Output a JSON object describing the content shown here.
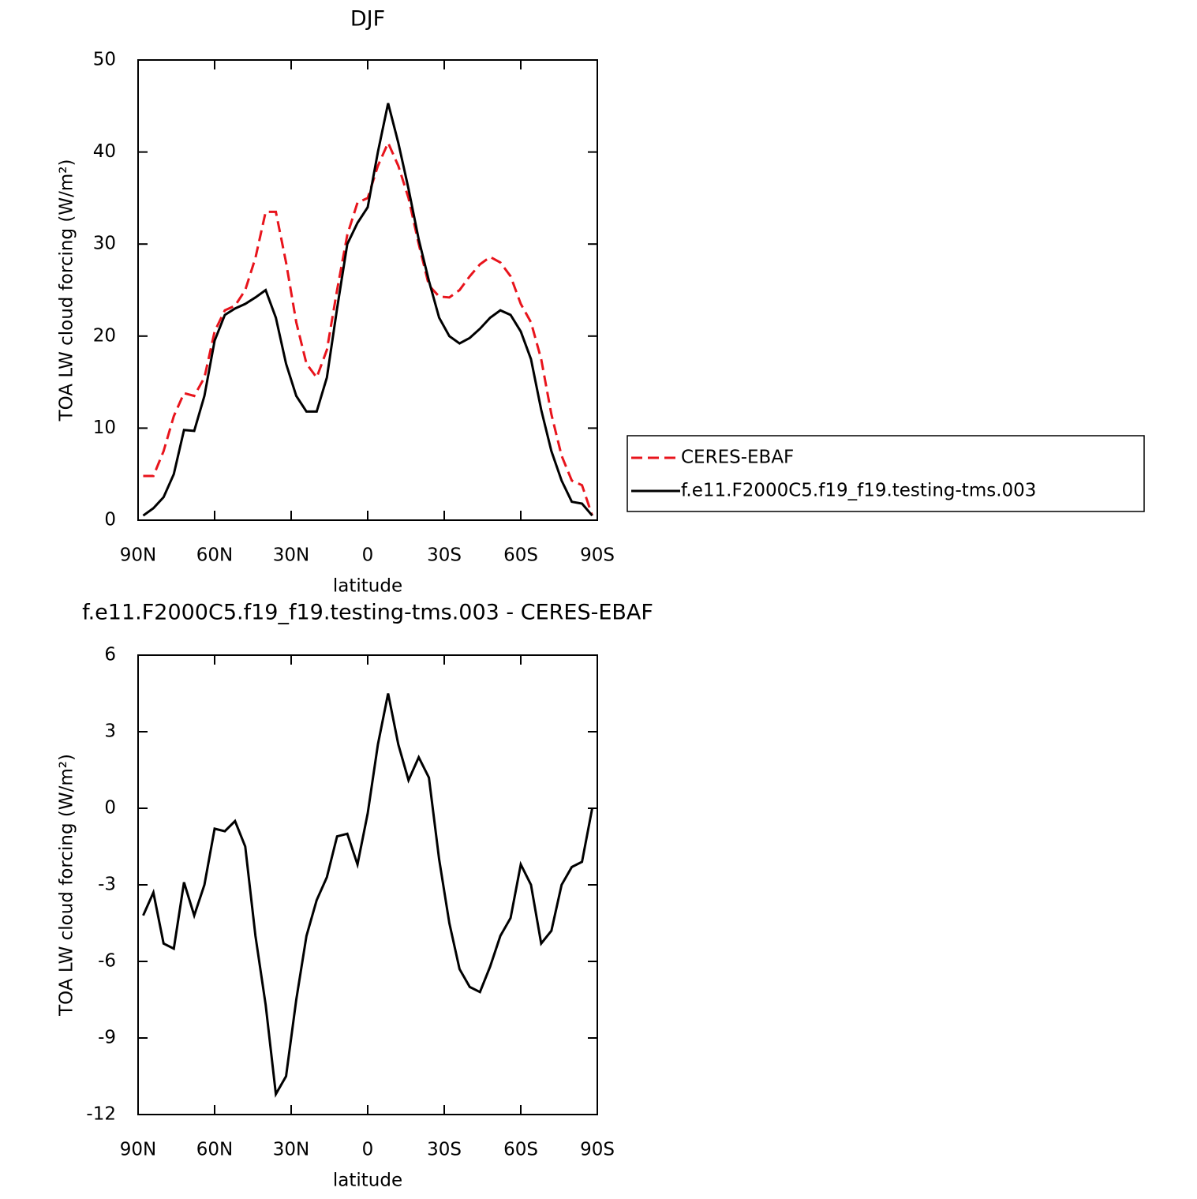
{
  "chart_data": [
    {
      "type": "line",
      "title": "DJF",
      "xlabel": "latitude",
      "ylabel": "TOA LW cloud forcing (W/m²)",
      "x": [
        88,
        84,
        80,
        76,
        72,
        68,
        64,
        60,
        56,
        52,
        48,
        44,
        40,
        36,
        32,
        28,
        24,
        20,
        16,
        12,
        8,
        4,
        0,
        -4,
        -8,
        -12,
        -16,
        -20,
        -24,
        -28,
        -32,
        -36,
        -40,
        -44,
        -48,
        -52,
        -56,
        -60,
        -64,
        -68,
        -72,
        -76,
        -80,
        -84,
        -88
      ],
      "xlim": [
        90,
        -90
      ],
      "xticks": [
        {
          "value": 90,
          "label": "90N"
        },
        {
          "value": 60,
          "label": "60N"
        },
        {
          "value": 30,
          "label": "30N"
        },
        0,
        {
          "value": -30,
          "label": "30S"
        },
        {
          "value": -60,
          "label": "60S"
        },
        {
          "value": -90,
          "label": "90S"
        }
      ],
      "ylim": [
        0,
        50
      ],
      "yticks": [
        0,
        10,
        20,
        30,
        40,
        50
      ],
      "legend": "right",
      "series": [
        {
          "name": "CERES-EBAF",
          "color": "#e8141c",
          "style": "dashed",
          "values": [
            4.8,
            4.8,
            7.5,
            11.3,
            13.8,
            13.5,
            15.5,
            20.5,
            22.8,
            23.3,
            25,
            28.5,
            33.5,
            33.5,
            28,
            21.5,
            17,
            15.5,
            18.5,
            25,
            31,
            34.5,
            35,
            38.5,
            41,
            38.5,
            35,
            30,
            25.5,
            24.3,
            24.2,
            25,
            26.5,
            27.8,
            28.6,
            28,
            26.5,
            23.5,
            21.5,
            17.5,
            11.5,
            7,
            4.3,
            3.8,
            0.5
          ]
        },
        {
          "name": "f.e11.F2000C5.f19_f19.testing-tms.003",
          "color": "#000000",
          "style": "solid",
          "values": [
            0.5,
            1.3,
            2.5,
            5,
            9.8,
            9.7,
            13.5,
            19.5,
            22.3,
            23,
            23.5,
            24.2,
            25,
            22,
            17,
            13.5,
            11.8,
            11.8,
            15.5,
            23,
            30,
            32.3,
            34,
            40,
            45.3,
            41,
            36,
            30.5,
            26,
            22,
            20,
            19.2,
            19.8,
            20.8,
            22,
            22.8,
            22.3,
            20.5,
            17.5,
            12,
            7.5,
            4.3,
            2,
            1.8,
            0.5
          ]
        }
      ]
    },
    {
      "type": "line",
      "title": "f.e11.F2000C5.f19_f19.testing-tms.003 - CERES-EBAF",
      "xlabel": "latitude",
      "ylabel": "TOA LW cloud forcing (W/m²)",
      "x": [
        88,
        84,
        80,
        76,
        72,
        68,
        64,
        60,
        56,
        52,
        48,
        44,
        40,
        36,
        32,
        28,
        24,
        20,
        16,
        12,
        8,
        4,
        0,
        -4,
        -8,
        -12,
        -16,
        -20,
        -24,
        -28,
        -32,
        -36,
        -40,
        -44,
        -48,
        -52,
        -56,
        -60,
        -64,
        -68,
        -72,
        -76,
        -80,
        -84,
        -88
      ],
      "xlim": [
        90,
        -90
      ],
      "xticks": [
        {
          "value": 90,
          "label": "90N"
        },
        {
          "value": 60,
          "label": "60N"
        },
        {
          "value": 30,
          "label": "30N"
        },
        0,
        {
          "value": -30,
          "label": "30S"
        },
        {
          "value": -60,
          "label": "60S"
        },
        {
          "value": -90,
          "label": "90S"
        }
      ],
      "ylim": [
        -12,
        6
      ],
      "yticks": [
        -12,
        -9,
        -6,
        -3,
        0,
        3,
        6
      ],
      "series": [
        {
          "color": "#000000",
          "style": "solid",
          "values": [
            -4.2,
            -3.3,
            -5.3,
            -5.5,
            -2.9,
            -4.2,
            -3,
            -0.8,
            -0.9,
            -0.5,
            -1.5,
            -5,
            -7.7,
            -11.2,
            -10.5,
            -7.5,
            -5,
            -3.6,
            -2.7,
            -1.1,
            -1,
            -2.2,
            -0.2,
            2.5,
            4.5,
            2.5,
            1.1,
            2,
            1.2,
            -2,
            -4.5,
            -6.3,
            -7,
            -7.2,
            -6.2,
            -5,
            -4.3,
            -2.2,
            -3,
            -5.3,
            -4.8,
            -3,
            -2.3,
            -2.1,
            0
          ]
        }
      ]
    }
  ]
}
